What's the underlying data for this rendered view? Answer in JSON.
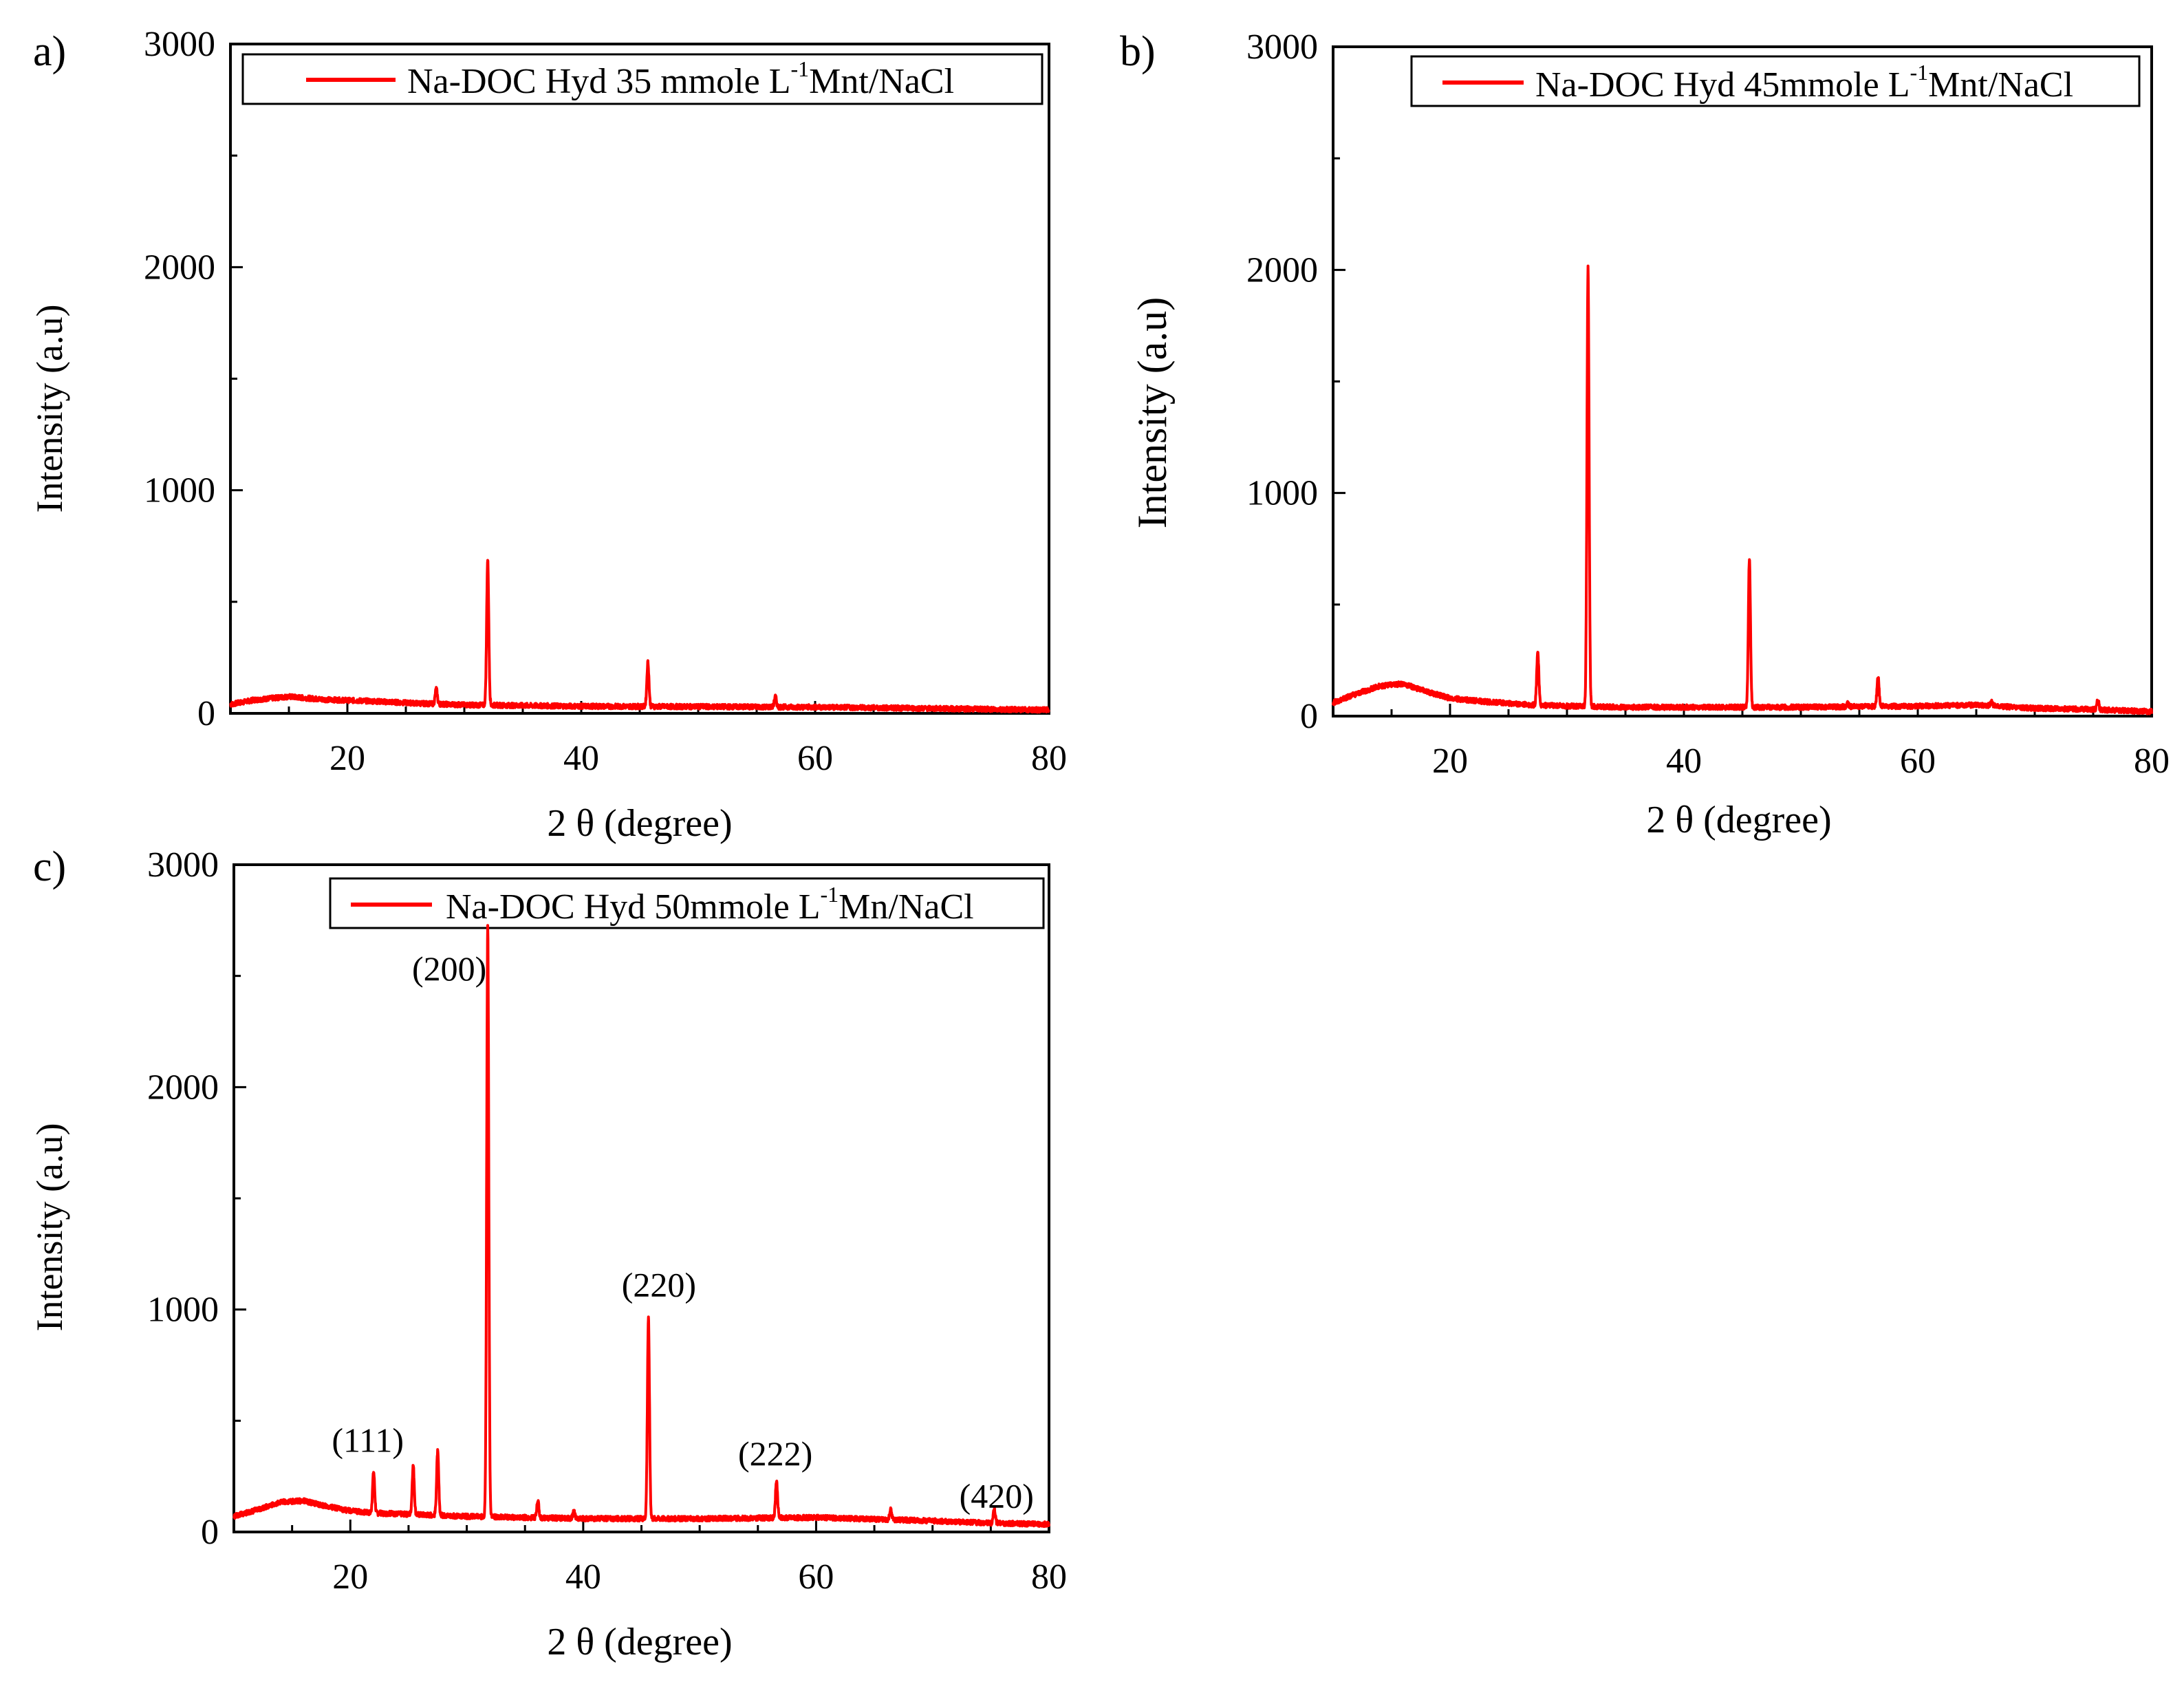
{
  "chart_data": [
    {
      "panel_label": "a)",
      "type": "line",
      "title": "",
      "xlabel": "2 θ (degree)",
      "ylabel": "Intensity (a.u)",
      "xlim": [
        10,
        80
      ],
      "ylim": [
        0,
        3000
      ],
      "xticks": [
        20,
        40,
        60,
        80
      ],
      "yticks": [
        0,
        1000,
        2000,
        3000
      ],
      "grid": false,
      "legend_position": "top-right",
      "color": "#ff0000",
      "legend": {
        "main": "Na-DOC Hyd 35 mmole L",
        "sup": "-1",
        "tail": "Mnt/NaCl"
      },
      "background": [
        [
          10,
          40
        ],
        [
          12,
          60
        ],
        [
          15,
          75
        ],
        [
          18,
          62
        ],
        [
          22,
          55
        ],
        [
          26,
          45
        ],
        [
          30,
          38
        ],
        [
          35,
          35
        ],
        [
          40,
          32
        ],
        [
          50,
          30
        ],
        [
          60,
          28
        ],
        [
          70,
          22
        ],
        [
          80,
          15
        ]
      ],
      "peaks": [
        {
          "x": 27.6,
          "y": 110
        },
        {
          "x": 32.0,
          "y": 690
        },
        {
          "x": 45.7,
          "y": 230
        },
        {
          "x": 56.6,
          "y": 75
        }
      ],
      "annotations": []
    },
    {
      "panel_label": "b)",
      "type": "line",
      "title": "",
      "xlabel": "2 θ (degree)",
      "ylabel": "Intensity (a.u)",
      "xlim": [
        10,
        80
      ],
      "ylim": [
        0,
        3000
      ],
      "xticks": [
        20,
        40,
        60,
        80
      ],
      "yticks": [
        0,
        1000,
        2000,
        3000
      ],
      "grid": false,
      "legend_position": "top-right",
      "color": "#ff0000",
      "legend": {
        "main": "Na-DOC Hyd 45mmole L",
        "sup": "-1",
        "tail": "Mnt/NaCl"
      },
      "background": [
        [
          10,
          60
        ],
        [
          12,
          100
        ],
        [
          14,
          135
        ],
        [
          16,
          145
        ],
        [
          18,
          110
        ],
        [
          20,
          80
        ],
        [
          23,
          65
        ],
        [
          27,
          50
        ],
        [
          30,
          45
        ],
        [
          35,
          40
        ],
        [
          40,
          40
        ],
        [
          50,
          40
        ],
        [
          60,
          45
        ],
        [
          65,
          50
        ],
        [
          70,
          35
        ],
        [
          75,
          30
        ],
        [
          80,
          20
        ]
      ],
      "peaks": [
        {
          "x": 27.5,
          "y": 290
        },
        {
          "x": 31.8,
          "y": 2010
        },
        {
          "x": 45.6,
          "y": 710
        },
        {
          "x": 54.0,
          "y": 55
        },
        {
          "x": 56.6,
          "y": 180
        },
        {
          "x": 66.3,
          "y": 70
        },
        {
          "x": 75.4,
          "y": 70
        }
      ],
      "annotations": []
    },
    {
      "panel_label": "c)",
      "type": "line",
      "title": "",
      "xlabel": "2 θ (degree)",
      "ylabel": "Intensity (a.u)",
      "xlim": [
        10,
        80
      ],
      "ylim": [
        0,
        3000
      ],
      "xticks": [
        20,
        40,
        60,
        80
      ],
      "yticks": [
        0,
        1000,
        2000,
        3000
      ],
      "grid": false,
      "legend_position": "top-right",
      "color": "#ff0000",
      "legend": {
        "main": "Na-DOC Hyd 50mmole L",
        "sup": "-1",
        "tail": "Mn/NaCl"
      },
      "background": [
        [
          10,
          70
        ],
        [
          12,
          100
        ],
        [
          14,
          135
        ],
        [
          16,
          140
        ],
        [
          18,
          115
        ],
        [
          20,
          95
        ],
        [
          22,
          85
        ],
        [
          25,
          80
        ],
        [
          30,
          70
        ],
        [
          35,
          65
        ],
        [
          40,
          60
        ],
        [
          50,
          60
        ],
        [
          60,
          65
        ],
        [
          70,
          50
        ],
        [
          75,
          40
        ],
        [
          80,
          35
        ]
      ],
      "peaks": [
        {
          "x": 22.0,
          "y": 270
        },
        {
          "x": 25.4,
          "y": 300
        },
        {
          "x": 27.5,
          "y": 360
        },
        {
          "x": 31.8,
          "y": 2720
        },
        {
          "x": 36.1,
          "y": 140
        },
        {
          "x": 39.2,
          "y": 90
        },
        {
          "x": 45.6,
          "y": 960
        },
        {
          "x": 56.6,
          "y": 230
        },
        {
          "x": 66.4,
          "y": 100
        },
        {
          "x": 75.3,
          "y": 105
        }
      ],
      "annotations": [
        {
          "text": "(111)",
          "x": 21.5,
          "y": 360
        },
        {
          "text": "(200)",
          "x": 28.5,
          "y": 2480
        },
        {
          "text": "(220)",
          "x": 46.5,
          "y": 1060
        },
        {
          "text": "(222)",
          "x": 56.5,
          "y": 300
        },
        {
          "text": "(420)",
          "x": 75.5,
          "y": 110
        }
      ]
    }
  ]
}
